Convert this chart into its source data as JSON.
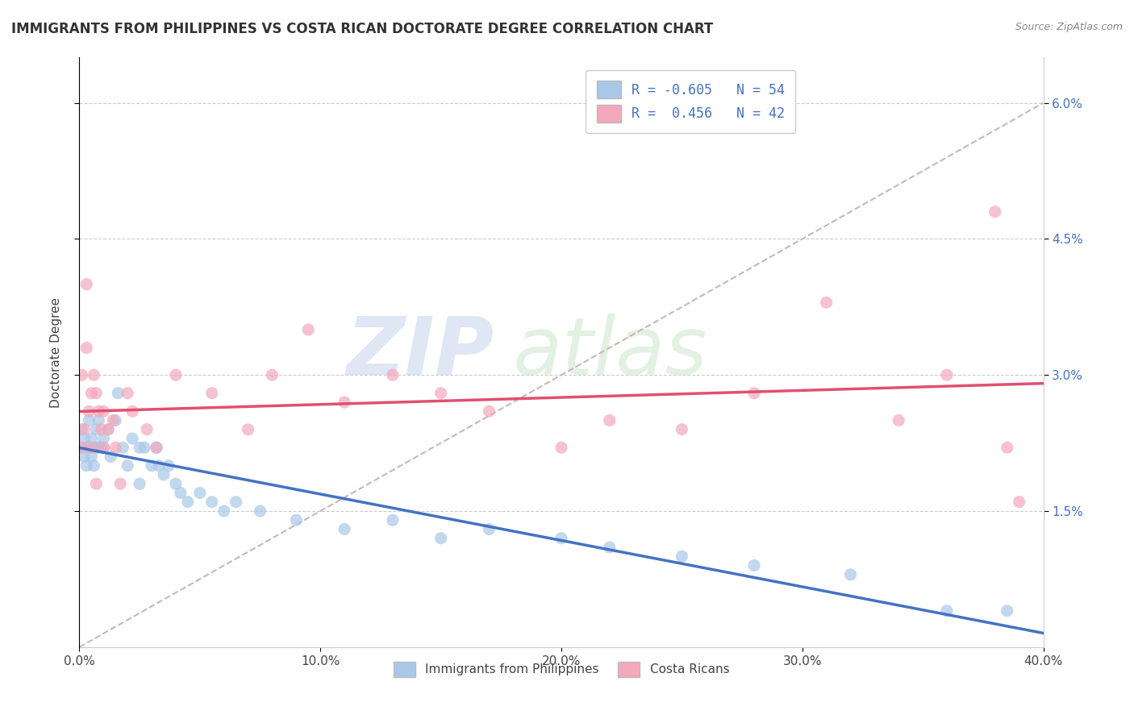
{
  "title": "IMMIGRANTS FROM PHILIPPINES VS COSTA RICAN DOCTORATE DEGREE CORRELATION CHART",
  "source": "Source: ZipAtlas.com",
  "ylabel": "Doctorate Degree",
  "xlim": [
    0.0,
    0.4
  ],
  "ylim": [
    0.0,
    0.065
  ],
  "yticks": [
    0.015,
    0.03,
    0.045,
    0.06
  ],
  "ytick_labels": [
    "1.5%",
    "3.0%",
    "4.5%",
    "6.0%"
  ],
  "xticks": [
    0.0,
    0.1,
    0.2,
    0.3,
    0.4
  ],
  "xtick_labels": [
    "0.0%",
    "10.0%",
    "20.0%",
    "30.0%",
    "40.0%"
  ],
  "blue_R": -0.605,
  "blue_N": 54,
  "pink_R": 0.456,
  "pink_N": 42,
  "blue_color": "#a8c8e8",
  "pink_color": "#f4a8bc",
  "blue_line_color": "#4472c4",
  "pink_line_color": "#e05070",
  "ref_line_color": "#c8b8b8",
  "background_color": "#ffffff",
  "grid_color": "#cccccc",
  "blue_scatter_x": [
    0.001,
    0.001,
    0.002,
    0.002,
    0.003,
    0.003,
    0.004,
    0.004,
    0.005,
    0.005,
    0.006,
    0.006,
    0.007,
    0.007,
    0.008,
    0.008,
    0.009,
    0.01,
    0.01,
    0.012,
    0.013,
    0.015,
    0.016,
    0.018,
    0.02,
    0.022,
    0.025,
    0.025,
    0.027,
    0.03,
    0.032,
    0.033,
    0.035,
    0.037,
    0.04,
    0.042,
    0.045,
    0.05,
    0.055,
    0.06,
    0.065,
    0.075,
    0.09,
    0.11,
    0.13,
    0.15,
    0.17,
    0.2,
    0.22,
    0.25,
    0.28,
    0.32,
    0.36,
    0.385
  ],
  "blue_scatter_y": [
    0.024,
    0.022,
    0.023,
    0.021,
    0.022,
    0.02,
    0.025,
    0.022,
    0.023,
    0.021,
    0.022,
    0.02,
    0.024,
    0.022,
    0.025,
    0.022,
    0.022,
    0.023,
    0.022,
    0.024,
    0.021,
    0.025,
    0.028,
    0.022,
    0.02,
    0.023,
    0.018,
    0.022,
    0.022,
    0.02,
    0.022,
    0.02,
    0.019,
    0.02,
    0.018,
    0.017,
    0.016,
    0.017,
    0.016,
    0.015,
    0.016,
    0.015,
    0.014,
    0.013,
    0.014,
    0.012,
    0.013,
    0.012,
    0.011,
    0.01,
    0.009,
    0.008,
    0.004,
    0.004
  ],
  "pink_scatter_x": [
    0.001,
    0.001,
    0.002,
    0.003,
    0.003,
    0.004,
    0.005,
    0.005,
    0.006,
    0.007,
    0.007,
    0.008,
    0.009,
    0.01,
    0.01,
    0.012,
    0.014,
    0.015,
    0.017,
    0.02,
    0.022,
    0.028,
    0.032,
    0.04,
    0.055,
    0.07,
    0.08,
    0.095,
    0.11,
    0.13,
    0.15,
    0.17,
    0.2,
    0.22,
    0.25,
    0.28,
    0.31,
    0.34,
    0.36,
    0.38,
    0.385,
    0.39
  ],
  "pink_scatter_y": [
    0.022,
    0.03,
    0.024,
    0.04,
    0.033,
    0.026,
    0.022,
    0.028,
    0.03,
    0.028,
    0.018,
    0.026,
    0.024,
    0.026,
    0.022,
    0.024,
    0.025,
    0.022,
    0.018,
    0.028,
    0.026,
    0.024,
    0.022,
    0.03,
    0.028,
    0.024,
    0.03,
    0.035,
    0.027,
    0.03,
    0.028,
    0.026,
    0.022,
    0.025,
    0.024,
    0.028,
    0.038,
    0.025,
    0.03,
    0.048,
    0.022,
    0.016
  ],
  "title_fontsize": 12,
  "label_fontsize": 11,
  "tick_fontsize": 11,
  "legend_fontsize": 12,
  "blue_legend_label": "R = -0.605   N = 54",
  "pink_legend_label": "R =  0.456   N = 42",
  "bottom_legend_blue": "Immigrants from Philippines",
  "bottom_legend_pink": "Costa Ricans"
}
